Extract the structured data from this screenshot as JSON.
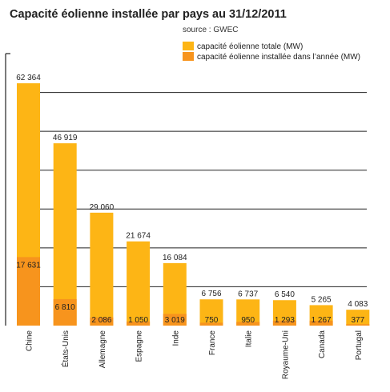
{
  "chart_data": {
    "type": "bar",
    "title": "Capacité éolienne installée par pays au 31/12/2011",
    "subtitle": "source : GWEC",
    "categories": [
      "Chine",
      "États-Unis",
      "Allemagne",
      "Espagne",
      "Inde",
      "France",
      "Italie",
      "Royaume-Uni",
      "Canada",
      "Portugal"
    ],
    "series": [
      {
        "name": "capacité éolienne totale (MW)",
        "color": "#FDB515",
        "values": [
          62364,
          46919,
          29060,
          21674,
          16084,
          6756,
          6737,
          6540,
          5265,
          4083
        ],
        "labels": [
          "62 364",
          "46 919",
          "29 060",
          "21 674",
          "16 084",
          "6 756",
          "6 737",
          "6 540",
          "5 265",
          "4 083"
        ]
      },
      {
        "name": "capacité éolienne installée dans l’année (MW)",
        "color": "#F7941D",
        "values": [
          17631,
          6810,
          2086,
          1050,
          3019,
          750,
          950,
          1293,
          1267,
          377
        ],
        "labels": [
          "17 631",
          "6 810",
          "2 086",
          "1 050",
          "3 019",
          "750",
          "950",
          "1 293",
          "1 267",
          "377"
        ]
      }
    ],
    "ylim": [
      0,
      70000
    ],
    "gridlines": [
      10000,
      20000,
      30000,
      40000,
      50000,
      60000
    ],
    "grid": true,
    "legend_position": "top-right",
    "xlabel": "",
    "ylabel": ""
  }
}
